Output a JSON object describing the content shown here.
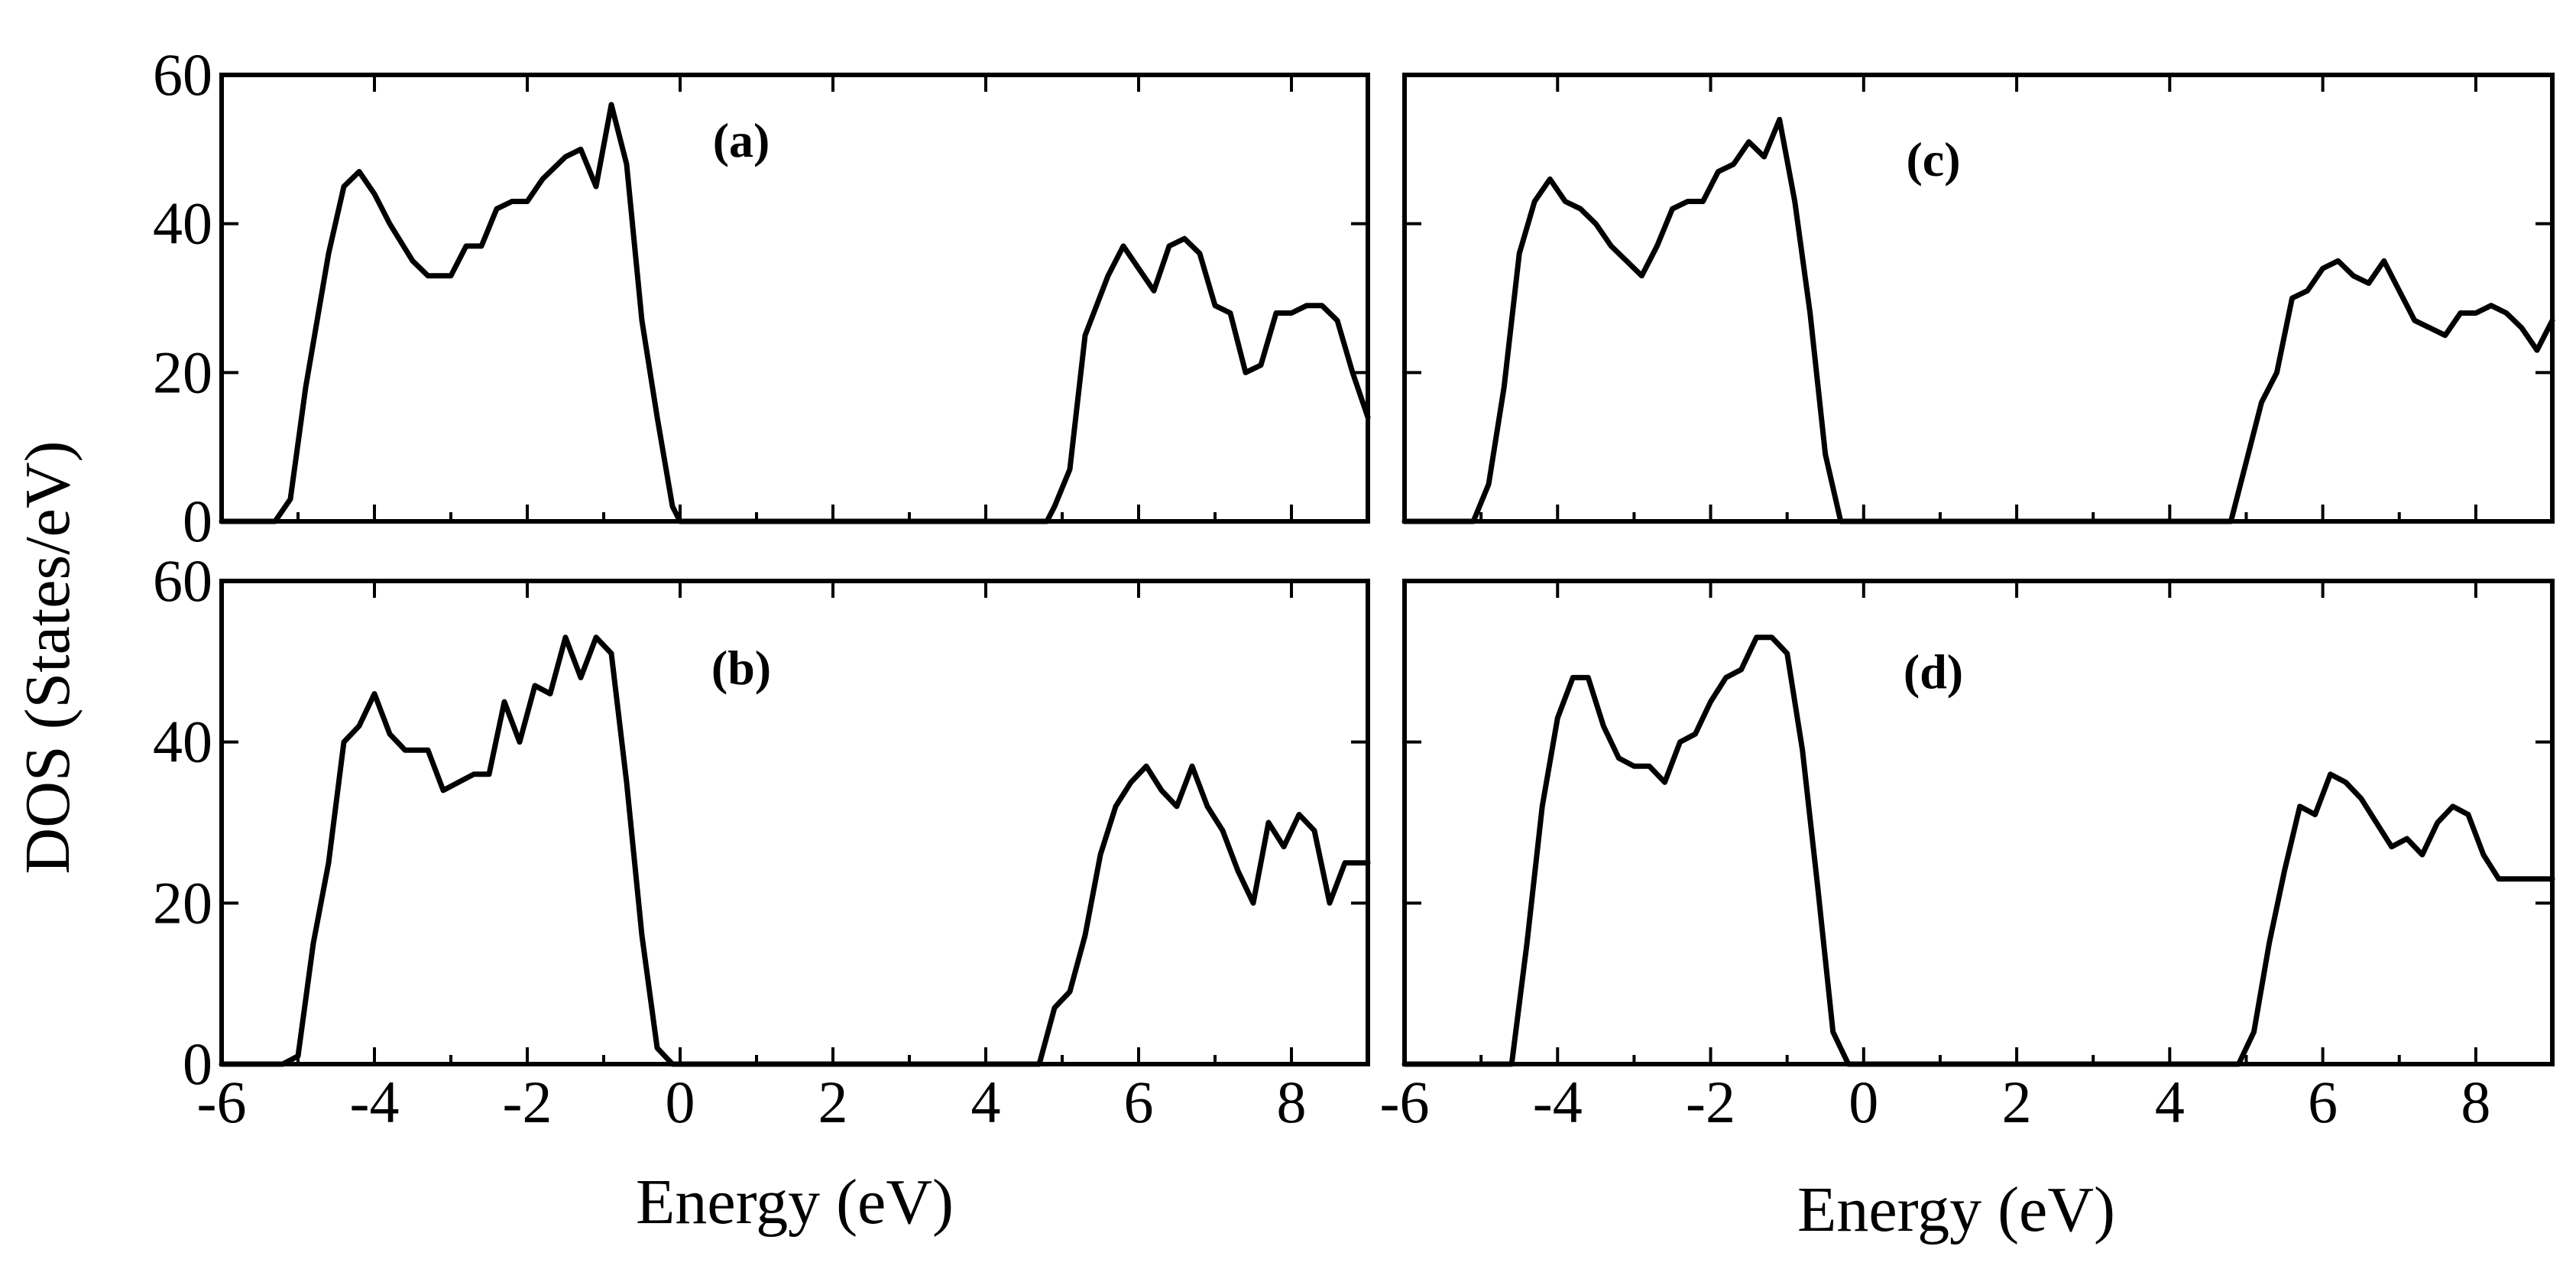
{
  "chart_data": {
    "type": "line",
    "ylabel": "DOS (States/eV)",
    "xlabel": "Energy (eV)",
    "xlim": [
      -6,
      9
    ],
    "ylim": [
      0,
      60
    ],
    "grid": false,
    "x_ticks": [
      -6,
      -4,
      -2,
      0,
      2,
      4,
      6,
      8
    ],
    "y_ticks": [
      0,
      20,
      40,
      60
    ],
    "panels": [
      {
        "label": "(a)",
        "x": [
          -6,
          -5.3,
          -5.1,
          -4.9,
          -4.6,
          -4.4,
          -4.2,
          -4.0,
          -3.8,
          -3.5,
          -3.3,
          -3.0,
          -2.8,
          -2.6,
          -2.4,
          -2.2,
          -2.0,
          -1.8,
          -1.5,
          -1.3,
          -1.1,
          -0.9,
          -0.7,
          -0.5,
          -0.3,
          -0.1,
          0.0,
          2,
          4.8,
          4.9,
          5.1,
          5.3,
          5.6,
          5.8,
          6.0,
          6.2,
          6.4,
          6.6,
          6.8,
          7.0,
          7.2,
          7.4,
          7.6,
          7.8,
          8.0,
          8.2,
          8.4,
          8.6,
          8.8,
          9.0
        ],
        "y": [
          0,
          0,
          3,
          18,
          36,
          45,
          47,
          44,
          40,
          35,
          33,
          33,
          37,
          37,
          42,
          43,
          43,
          46,
          49,
          50,
          45,
          56,
          48,
          27,
          14,
          2,
          0,
          0,
          0,
          2,
          7,
          25,
          33,
          37,
          34,
          31,
          37,
          38,
          36,
          29,
          28,
          20,
          21,
          28,
          28,
          29,
          29,
          27,
          20,
          14
        ]
      },
      {
        "label": "(b)",
        "x": [
          -6,
          -5.2,
          -5.0,
          -4.8,
          -4.6,
          -4.4,
          -4.2,
          -4.0,
          -3.8,
          -3.6,
          -3.3,
          -3.1,
          -2.9,
          -2.7,
          -2.5,
          -2.3,
          -2.1,
          -1.9,
          -1.7,
          -1.5,
          -1.3,
          -1.1,
          -0.9,
          -0.7,
          -0.5,
          -0.3,
          -0.1,
          0.0,
          2,
          4.7,
          4.9,
          5.1,
          5.3,
          5.5,
          5.7,
          5.9,
          6.1,
          6.3,
          6.5,
          6.7,
          6.9,
          7.1,
          7.3,
          7.5,
          7.7,
          7.9,
          8.1,
          8.3,
          8.5,
          8.7,
          9.0
        ],
        "y": [
          0,
          0,
          1,
          15,
          25,
          40,
          42,
          46,
          41,
          39,
          39,
          34,
          35,
          36,
          36,
          45,
          40,
          47,
          46,
          53,
          48,
          53,
          51,
          35,
          16,
          2,
          0,
          0,
          0,
          0,
          7,
          9,
          16,
          26,
          32,
          35,
          37,
          34,
          32,
          37,
          32,
          29,
          24,
          20,
          30,
          27,
          31,
          29,
          20,
          25,
          25
        ]
      },
      {
        "label": "(c)",
        "x": [
          -6,
          -5.1,
          -4.9,
          -4.7,
          -4.5,
          -4.3,
          -4.1,
          -3.9,
          -3.7,
          -3.5,
          -3.3,
          -3.1,
          -2.9,
          -2.7,
          -2.5,
          -2.3,
          -2.1,
          -1.9,
          -1.7,
          -1.5,
          -1.3,
          -1.1,
          -0.9,
          -0.7,
          -0.5,
          -0.3,
          -0.1,
          0.0,
          2,
          4.8,
          5.0,
          5.2,
          5.4,
          5.6,
          5.8,
          6.0,
          6.2,
          6.4,
          6.6,
          6.8,
          7.0,
          7.2,
          7.4,
          7.6,
          7.8,
          8.0,
          8.2,
          8.4,
          8.6,
          8.8,
          9.0
        ],
        "y": [
          0,
          0,
          5,
          18,
          36,
          43,
          46,
          43,
          42,
          40,
          37,
          35,
          33,
          37,
          42,
          43,
          43,
          47,
          48,
          51,
          49,
          54,
          43,
          28,
          9,
          0,
          0,
          0,
          0,
          0,
          8,
          16,
          20,
          30,
          31,
          34,
          35,
          33,
          32,
          35,
          31,
          27,
          26,
          25,
          28,
          28,
          29,
          28,
          26,
          23,
          27
        ]
      },
      {
        "label": "(d)",
        "x": [
          -6,
          -4.6,
          -4.4,
          -4.2,
          -4.0,
          -3.8,
          -3.6,
          -3.4,
          -3.2,
          -3.0,
          -2.8,
          -2.6,
          -2.4,
          -2.2,
          -2.0,
          -1.8,
          -1.6,
          -1.4,
          -1.2,
          -1.0,
          -0.8,
          -0.6,
          -0.4,
          -0.2,
          0.0,
          0.1,
          2,
          4.9,
          5.1,
          5.3,
          5.5,
          5.7,
          5.9,
          6.1,
          6.3,
          6.5,
          6.7,
          6.9,
          7.1,
          7.3,
          7.5,
          7.7,
          7.9,
          8.1,
          8.3,
          8.5,
          8.7,
          9.0
        ],
        "y": [
          0,
          0,
          15,
          32,
          43,
          48,
          48,
          42,
          38,
          37,
          37,
          35,
          40,
          41,
          45,
          48,
          49,
          53,
          53,
          51,
          39,
          22,
          4,
          0,
          0,
          0,
          0,
          0,
          4,
          15,
          24,
          32,
          31,
          36,
          35,
          33,
          30,
          27,
          28,
          26,
          30,
          32,
          31,
          26,
          23,
          23,
          23,
          23
        ]
      }
    ]
  }
}
